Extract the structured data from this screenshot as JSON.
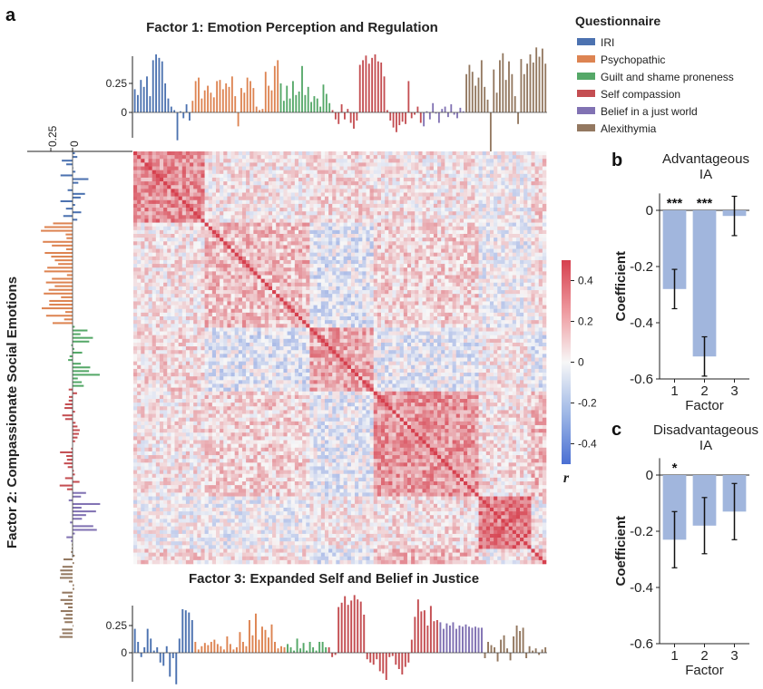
{
  "panel_labels": {
    "a": "a",
    "b": "b",
    "c": "c"
  },
  "colors": {
    "IRI": "#4c72b0",
    "Psychopathic": "#dd8452",
    "Guilt and shame proneness": "#55a868",
    "Self compassion": "#c44e52",
    "Belief in a just world": "#8172b3",
    "Alexithymia": "#937860",
    "ia_bar": "#a1b6dd"
  },
  "legend": {
    "title": "Questionnaire",
    "items": [
      "IRI",
      "Psychopathic",
      "Guilt and shame proneness",
      "Self compassion",
      "Belief in a just world",
      "Alexithymia"
    ]
  },
  "colorbar": {
    "label": "r",
    "ticks": [
      "0.4",
      "0.2",
      "0",
      "-0.2",
      "-0.4"
    ],
    "range": [
      -0.5,
      0.5
    ],
    "colormap": "coolwarm"
  },
  "chart_data": [
    {
      "type": "bar",
      "title": "Factor 1: Emotion Perception and Regulation",
      "orientation": "vertical",
      "yticks": [
        "0.25",
        "0"
      ],
      "series": [
        {
          "name": "IRI",
          "values": [
            0.2,
            0.15,
            0.28,
            0.22,
            0.31,
            0.14,
            0.45,
            0.5,
            0.47,
            0.44,
            0.25,
            0.12,
            0.05,
            0.02,
            -0.24,
            0.01,
            -0.05,
            0.07,
            -0.07
          ]
        },
        {
          "name": "Psychopathic",
          "values": [
            0.1,
            0.27,
            0.3,
            0.12,
            0.19,
            0.23,
            0.17,
            0.13,
            0.27,
            0.28,
            0.2,
            0.25,
            0.22,
            0.31,
            0.14,
            -0.12,
            0.21,
            0.17,
            0.3,
            0.27,
            0.21,
            0.05,
            0.02,
            0.03,
            0.35,
            0.23,
            0.19,
            0.4,
            0.45
          ]
        },
        {
          "name": "Guilt and shame proneness",
          "values": [
            0.25,
            0.1,
            0.23,
            0.12,
            0.27,
            0.15,
            0.18,
            0.4,
            0.15,
            0.22,
            0.09,
            0.14,
            0.12,
            0.05,
            0.24,
            0.16,
            0.08
          ]
        },
        {
          "name": "Self compassion",
          "values": [
            0.02,
            -0.06,
            -0.1,
            0.07,
            -0.06,
            0.03,
            -0.09,
            -0.14,
            -0.07,
            0.41,
            0.45,
            0.49,
            0.42,
            0.47,
            0.5,
            0.44,
            0.43,
            0.31,
            0.02,
            -0.07,
            -0.13,
            -0.17,
            -0.11,
            -0.08,
            -0.1,
            0.27,
            -0.05,
            -0.02,
            0.05,
            -0.09
          ]
        },
        {
          "name": "Belief in a just world",
          "values": [
            -0.12,
            0.01,
            -0.06,
            0.08,
            -0.01,
            -0.09,
            0.03,
            0.05,
            -0.04,
            0.07,
            -0.02,
            -0.05,
            0.04,
            0.01
          ]
        },
        {
          "name": "Alexithymia",
          "values": [
            0.33,
            0.41,
            0.35,
            0.23,
            0.3,
            0.45,
            0.22,
            0.11,
            -0.4,
            0.37,
            0.17,
            0.45,
            0.51,
            0.28,
            0.44,
            0.33,
            0.14,
            -0.1,
            0.46,
            0.33,
            0.42,
            0.5,
            0.43,
            0.56,
            0.48,
            0.55,
            0.42
          ]
        }
      ]
    },
    {
      "type": "bar",
      "title": "Factor 2: Compassionate Social Emotions",
      "orientation": "horizontal",
      "yticks": [
        "0.25",
        "0"
      ]
    },
    {
      "type": "heatmap",
      "n": 110,
      "group_sizes": [
        19,
        28,
        17,
        28,
        14,
        26
      ],
      "colorbar_range": [
        -0.5,
        0.5
      ]
    },
    {
      "type": "bar",
      "title": "Factor 3: Expanded Self and Belief in Justice",
      "orientation": "vertical",
      "yticks": [
        "0.25",
        "0"
      ],
      "series": [
        {
          "name": "IRI",
          "values": [
            0.22,
            0.1,
            -0.04,
            0.05,
            0.22,
            0.13,
            0.02,
            0.05,
            -0.09,
            -0.12,
            0.06,
            -0.22,
            -0.05,
            -0.29,
            0.13,
            0.4,
            0.39,
            0.37,
            0.3
          ]
        },
        {
          "name": "Psychopathic",
          "values": [
            0.1,
            0.03,
            0.06,
            0.09,
            0.07,
            0.1,
            0.12,
            0.08,
            0.06,
            0.03,
            0.15,
            0.08,
            0.03,
            0.05,
            0.19,
            0.1,
            0.06,
            0.3,
            0.16,
            0.36,
            0.12,
            0.24,
            0.21,
            0.14,
            0.26,
            0.1,
            0.04,
            0.06,
            0.05
          ]
        },
        {
          "name": "Guilt and shame proneness",
          "values": [
            0.08,
            0.05,
            0.02,
            0.13,
            0.04,
            0.09,
            0.02,
            0.1,
            0.05,
            0.02,
            0.1,
            0.1,
            0.05
          ]
        },
        {
          "name": "Self compassion",
          "values": [
            0.05,
            -0.04,
            -0.02,
            0.42,
            0.46,
            0.52,
            0.44,
            0.48,
            0.53,
            0.49,
            0.47,
            0.35,
            -0.06,
            -0.09,
            -0.11,
            -0.06,
            -0.17,
            -0.19,
            -0.25,
            -0.04,
            -0.03,
            -0.11,
            -0.15,
            -0.2,
            -0.13,
            -0.09,
            0.12,
            0.33,
            0.49,
            0.38,
            0.39,
            0.25,
            0.43,
            0.29,
            0.3
          ]
        },
        {
          "name": "Belief in a just world",
          "values": [
            0.28,
            0.22,
            0.27,
            0.25,
            0.28,
            0.22,
            0.25,
            0.24,
            0.26,
            0.24,
            0.23,
            0.24,
            0.23,
            0.23
          ]
        },
        {
          "name": "Alexithymia",
          "values": [
            -0.05,
            0.1,
            0.07,
            0.05,
            -0.08,
            0.12,
            0.16,
            0.04,
            -0.07,
            0.15,
            0.25,
            0.2,
            0.23,
            -0.05,
            0.06,
            0.02,
            0.04,
            -0.02,
            0.03,
            0.05
          ]
        }
      ]
    },
    {
      "type": "bar",
      "title": "Advantageous\nIA",
      "categories": [
        "1",
        "2",
        "3"
      ],
      "values": [
        -0.28,
        -0.52,
        -0.02
      ],
      "errors": [
        0.07,
        0.07,
        0.07
      ],
      "significance": [
        "***",
        "***",
        ""
      ],
      "xlabel": "Factor",
      "ylabel": "Coefficient",
      "ylim": [
        -0.6,
        0.06
      ],
      "yticks": [
        "0",
        "-0.2",
        "-0.4",
        "-0.6"
      ]
    },
    {
      "type": "bar",
      "title": "Disadvantageous\nIA",
      "categories": [
        "1",
        "2",
        "3"
      ],
      "values": [
        -0.23,
        -0.18,
        -0.13
      ],
      "errors": [
        0.1,
        0.1,
        0.1
      ],
      "significance": [
        "*",
        "",
        ""
      ],
      "xlabel": "Factor",
      "ylabel": "Coefficient",
      "ylim": [
        -0.6,
        0.06
      ],
      "yticks": [
        "0",
        "-0.2",
        "-0.4",
        "-0.6"
      ]
    }
  ]
}
